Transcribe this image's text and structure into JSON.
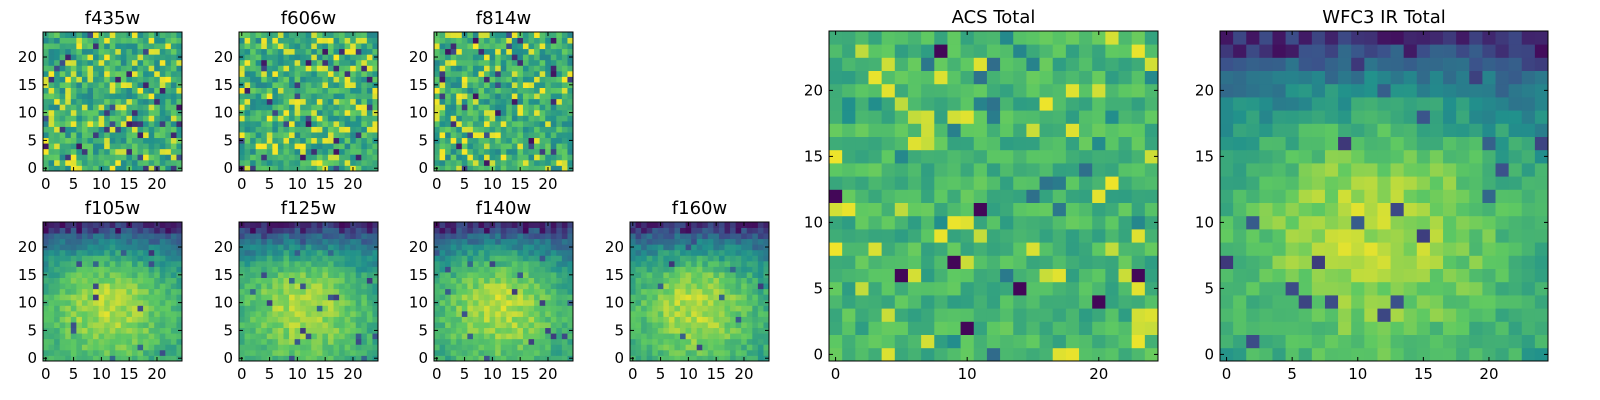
{
  "colors": {
    "colormap": "viridis",
    "colormap_stops": [
      "#440154",
      "#3b528b",
      "#21918c",
      "#5ec962",
      "#fde725"
    ]
  },
  "chart_data": [
    {
      "type": "heatmap",
      "id": "f435w",
      "title": "f435w",
      "grid": [
        25,
        25
      ],
      "xlim": [
        0,
        24
      ],
      "ylim": [
        0,
        24
      ],
      "xticks": [
        0,
        5,
        10,
        15,
        20
      ],
      "yticks": [
        0,
        5,
        10,
        15,
        20
      ],
      "tick_labels": [
        "0",
        "5",
        "10",
        "15",
        "20"
      ],
      "pattern": "uniform-noise",
      "value_range": [
        0,
        1
      ]
    },
    {
      "type": "heatmap",
      "id": "f606w",
      "title": "f606w",
      "grid": [
        25,
        25
      ],
      "xlim": [
        0,
        24
      ],
      "ylim": [
        0,
        24
      ],
      "xticks": [
        0,
        5,
        10,
        15,
        20
      ],
      "yticks": [
        0,
        5,
        10,
        15,
        20
      ],
      "tick_labels": [
        "0",
        "5",
        "10",
        "15",
        "20"
      ],
      "pattern": "uniform-noise",
      "value_range": [
        0,
        1
      ]
    },
    {
      "type": "heatmap",
      "id": "f814w",
      "title": "f814w",
      "grid": [
        25,
        25
      ],
      "xlim": [
        0,
        24
      ],
      "ylim": [
        0,
        24
      ],
      "xticks": [
        0,
        5,
        10,
        15,
        20
      ],
      "yticks": [
        0,
        5,
        10,
        15,
        20
      ],
      "tick_labels": [
        "0",
        "5",
        "10",
        "15",
        "20"
      ],
      "pattern": "uniform-noise",
      "value_range": [
        0,
        1
      ]
    },
    {
      "type": "heatmap",
      "id": "f105w",
      "title": "f105w",
      "grid": [
        25,
        25
      ],
      "xlim": [
        0,
        24
      ],
      "ylim": [
        0,
        24
      ],
      "xticks": [
        0,
        5,
        10,
        15,
        20
      ],
      "yticks": [
        0,
        5,
        10,
        15,
        20
      ],
      "tick_labels": [
        "0",
        "5",
        "10",
        "15",
        "20"
      ],
      "pattern": "central-glow-dark-top",
      "value_range": [
        0,
        1
      ]
    },
    {
      "type": "heatmap",
      "id": "f125w",
      "title": "f125w",
      "grid": [
        25,
        25
      ],
      "xlim": [
        0,
        24
      ],
      "ylim": [
        0,
        24
      ],
      "xticks": [
        0,
        5,
        10,
        15,
        20
      ],
      "yticks": [
        0,
        5,
        10,
        15,
        20
      ],
      "tick_labels": [
        "0",
        "5",
        "10",
        "15",
        "20"
      ],
      "pattern": "central-glow-dark-top",
      "value_range": [
        0,
        1
      ]
    },
    {
      "type": "heatmap",
      "id": "f140w",
      "title": "f140w",
      "grid": [
        25,
        25
      ],
      "xlim": [
        0,
        24
      ],
      "ylim": [
        0,
        24
      ],
      "xticks": [
        0,
        5,
        10,
        15,
        20
      ],
      "yticks": [
        0,
        5,
        10,
        15,
        20
      ],
      "tick_labels": [
        "0",
        "5",
        "10",
        "15",
        "20"
      ],
      "pattern": "central-glow-dark-top",
      "value_range": [
        0,
        1
      ]
    },
    {
      "type": "heatmap",
      "id": "f160w",
      "title": "f160w",
      "grid": [
        25,
        25
      ],
      "xlim": [
        0,
        24
      ],
      "ylim": [
        0,
        24
      ],
      "xticks": [
        0,
        5,
        10,
        15,
        20
      ],
      "yticks": [
        0,
        5,
        10,
        15,
        20
      ],
      "tick_labels": [
        "0",
        "5",
        "10",
        "15",
        "20"
      ],
      "pattern": "central-glow-dark-top",
      "value_range": [
        0,
        1
      ]
    },
    {
      "type": "heatmap",
      "id": "acs-total",
      "title": "ACS Total",
      "grid": [
        25,
        25
      ],
      "xlim": [
        0,
        24
      ],
      "ylim": [
        0,
        24
      ],
      "xticks": [
        0,
        10,
        20
      ],
      "yticks": [
        0,
        5,
        10,
        15,
        20
      ],
      "tick_labels": [
        "0",
        "5",
        "10",
        "15",
        "20"
      ],
      "pattern": "uniform-noise-smoother",
      "value_range": [
        0,
        1
      ]
    },
    {
      "type": "heatmap",
      "id": "wfc3-ir-total",
      "title": "WFC3 IR Total",
      "grid": [
        25,
        25
      ],
      "xlim": [
        0,
        24
      ],
      "ylim": [
        0,
        24
      ],
      "xticks": [
        0,
        5,
        10,
        15,
        20
      ],
      "yticks": [
        0,
        5,
        10,
        15,
        20
      ],
      "tick_labels": [
        "0",
        "5",
        "10",
        "15",
        "20"
      ],
      "pattern": "central-glow-dark-top",
      "value_range": [
        0,
        1
      ]
    }
  ]
}
